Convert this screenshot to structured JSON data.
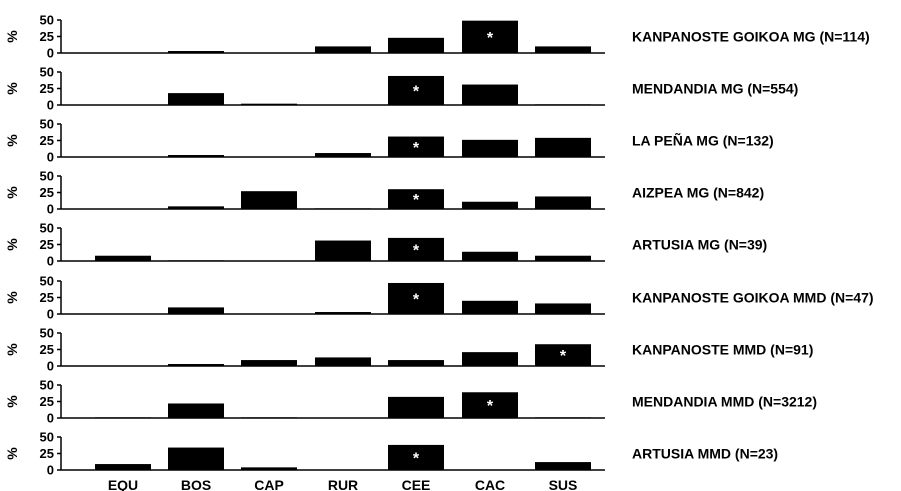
{
  "chart_data": {
    "type": "bar",
    "categories": [
      "EQU",
      "BOS",
      "CAP",
      "RUR",
      "CEE",
      "CAC",
      "SUS"
    ],
    "y_label": "%",
    "y_ticks": [
      0,
      25,
      50
    ],
    "ylim": [
      0,
      50
    ],
    "grid": false,
    "bar_color": "#000000",
    "marker_color": "#ffffff",
    "panels": [
      {
        "title": "KANPANOSTE GOIKOA MG (N=114)",
        "values": [
          0,
          3,
          0,
          10,
          23,
          49,
          10
        ],
        "marked": "CAC"
      },
      {
        "title": "MENDANDIA MG (N=554)",
        "values": [
          0,
          18,
          2,
          0,
          44,
          31,
          1
        ],
        "marked": "CEE"
      },
      {
        "title": "LA PEÑA MG (N=132)",
        "values": [
          0,
          3,
          0,
          6,
          31,
          26,
          29
        ],
        "marked": "CEE"
      },
      {
        "title": "AIZPEA MG (N=842)",
        "values": [
          0,
          4,
          27,
          1,
          30,
          11,
          19
        ],
        "marked": "CEE"
      },
      {
        "title": "ARTUSIA MG (N=39)",
        "values": [
          8,
          1,
          0,
          31,
          35,
          14,
          8
        ],
        "marked": "CEE"
      },
      {
        "title": "KANPANOSTE GOIKOA MMD (N=47)",
        "values": [
          0,
          10,
          0,
          3,
          47,
          20,
          16
        ],
        "marked": "CEE"
      },
      {
        "title": "KANPANOSTE MMD (N=91)",
        "values": [
          0,
          3,
          9,
          13,
          9,
          21,
          33
        ],
        "marked": "SUS"
      },
      {
        "title": "MENDANDIA MMD (N=3212)",
        "values": [
          1,
          22,
          1,
          0,
          32,
          39,
          1
        ],
        "marked": "CAC"
      },
      {
        "title": "ARTUSIA MMD (N=23)",
        "values": [
          9,
          34,
          4,
          0,
          38,
          0,
          12
        ],
        "marked": "CEE"
      }
    ]
  }
}
